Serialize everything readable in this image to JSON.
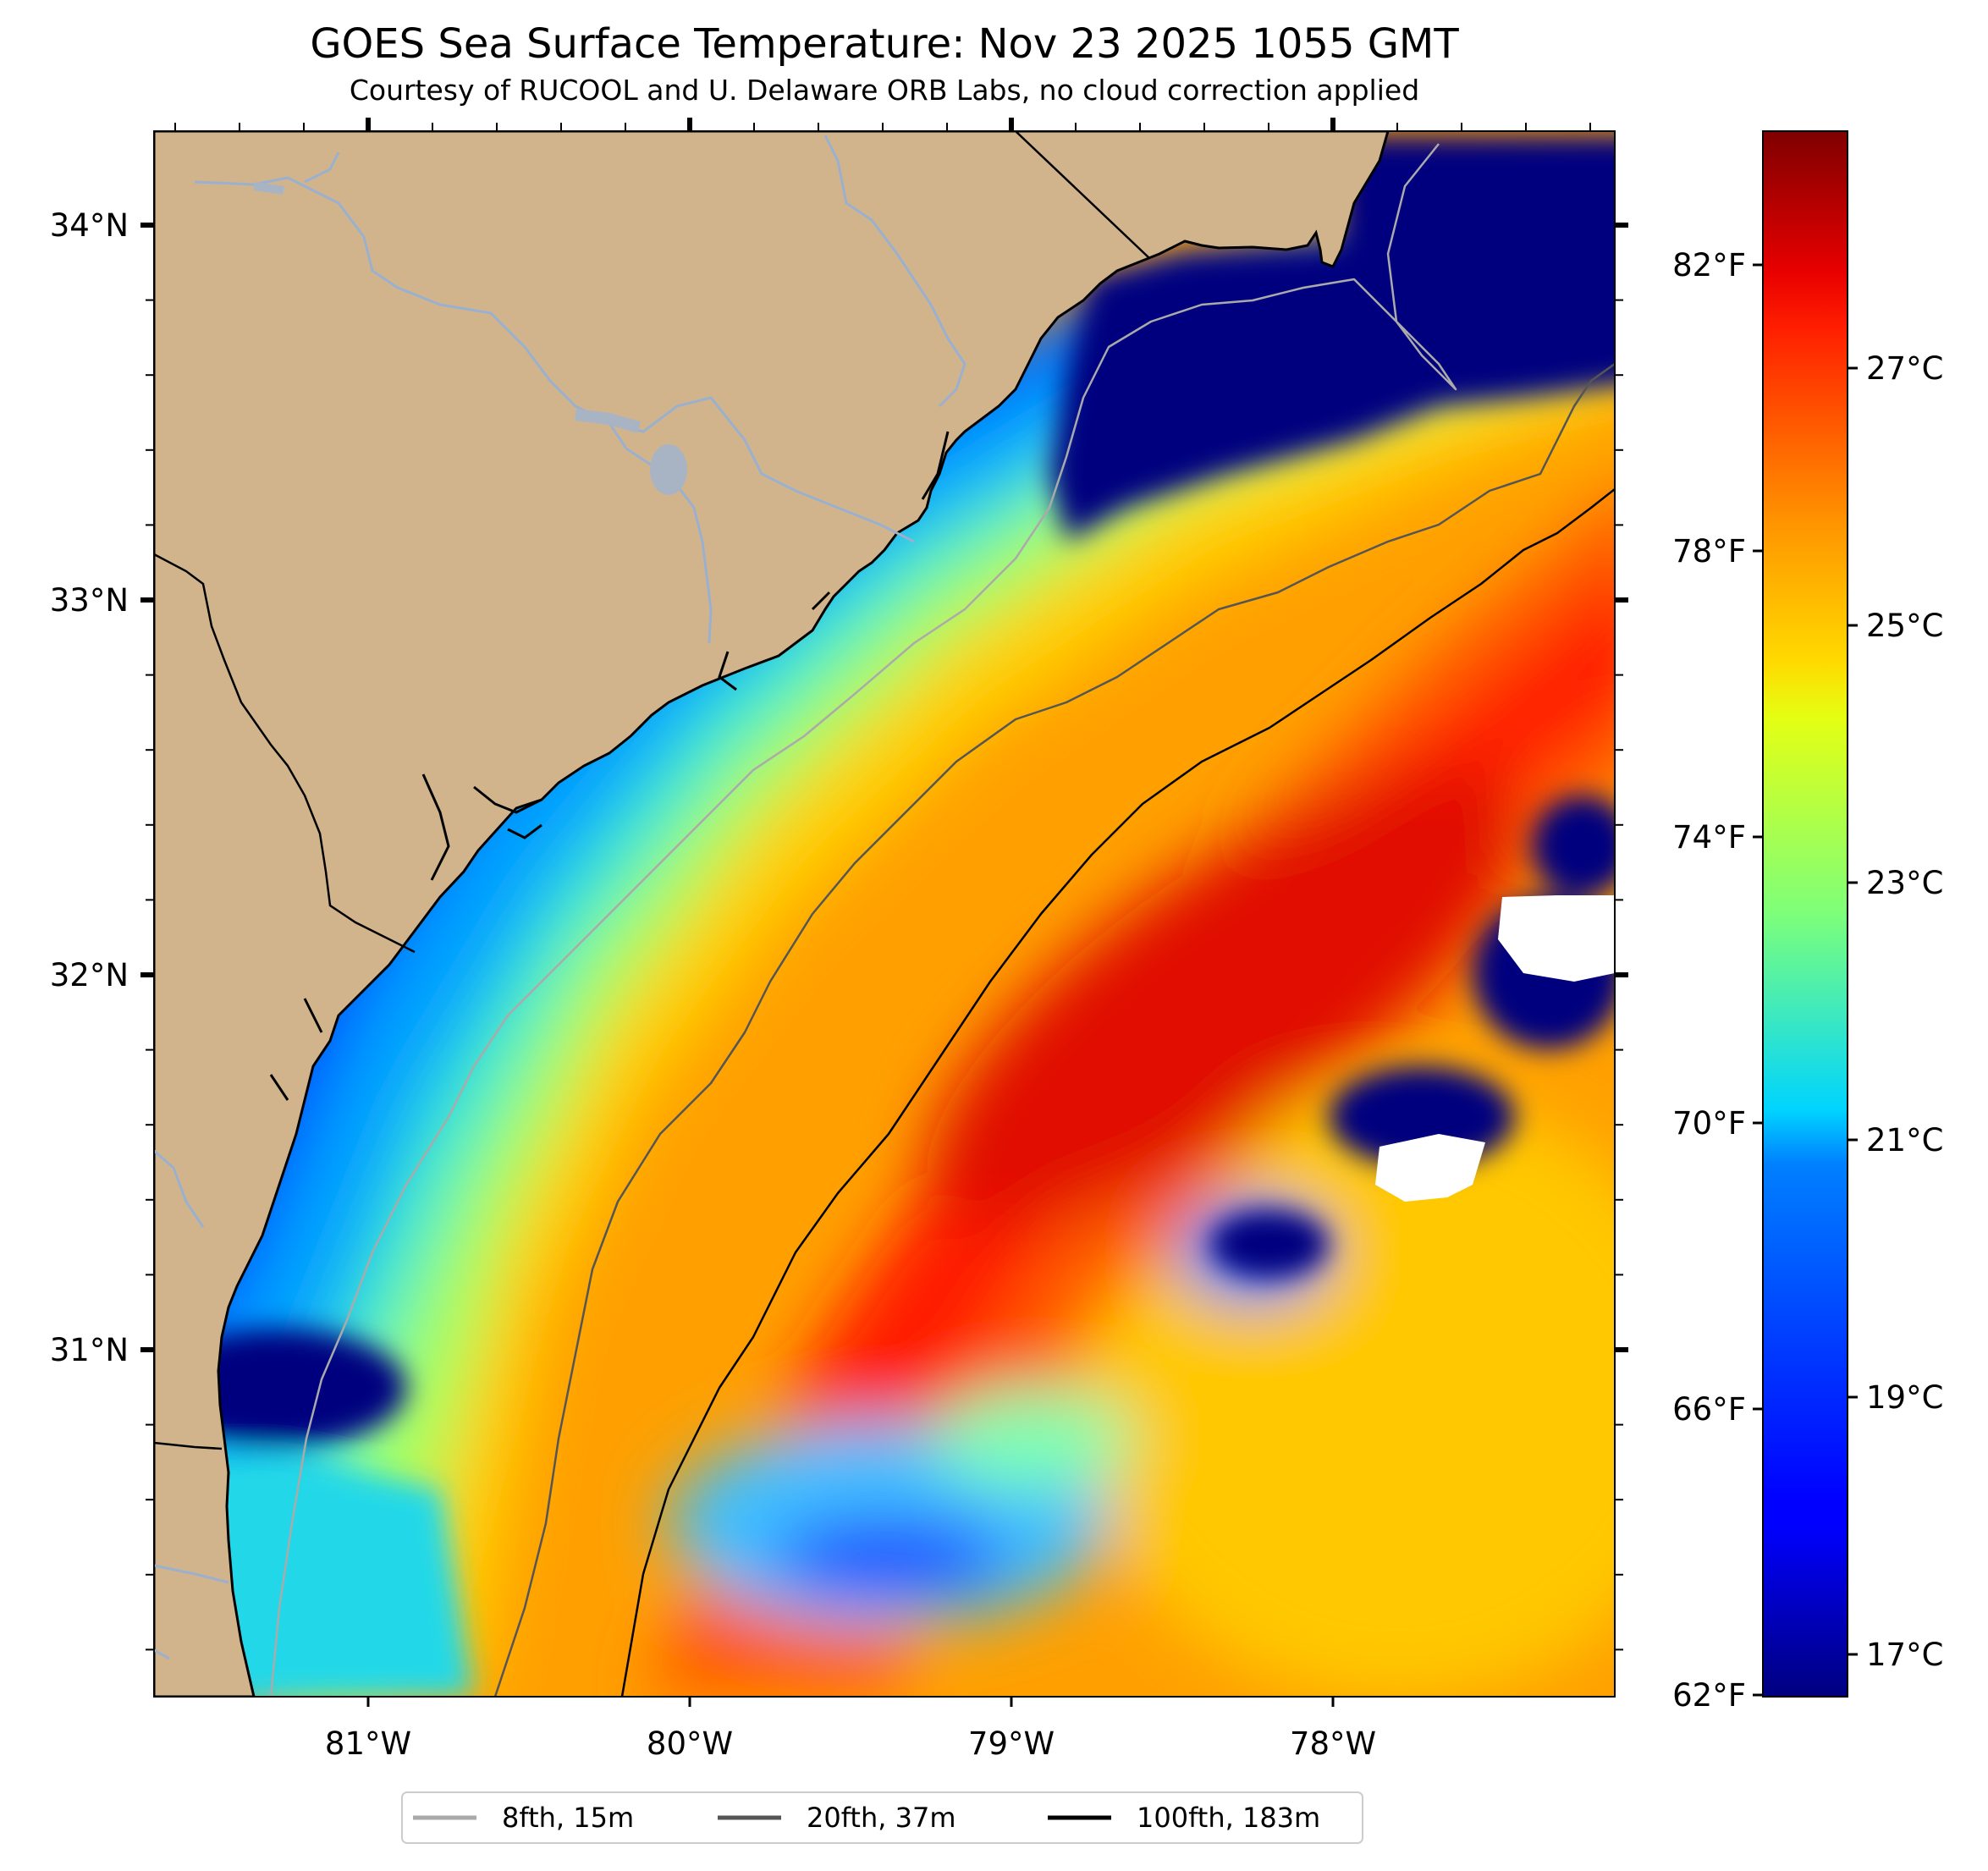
{
  "title": "GOES Sea Surface Temperature: Nov 23 2025 1055 GMT",
  "subtitle": "Courtesy of RUCOOL and U. Delaware ORB Labs, no cloud correction applied",
  "map": {
    "lat_labels": [
      {
        "value": 34,
        "label": "34°N"
      },
      {
        "value": 33,
        "label": "33°N"
      },
      {
        "value": 32,
        "label": "32°N"
      },
      {
        "value": 31,
        "label": "31°N"
      }
    ],
    "lon_labels": [
      {
        "value": -81,
        "label": "81°W"
      },
      {
        "value": -80,
        "label": "80°W"
      },
      {
        "value": -79,
        "label": "79°W"
      },
      {
        "value": -78,
        "label": "78°W"
      }
    ],
    "colors": {
      "land": "#d2b48c",
      "rivers": "#9ab0cf",
      "coastline": "#000000",
      "cloud_mask": "#ffffff"
    }
  },
  "colorbar": {
    "colormap": "jet",
    "fahrenheit_ticks": [
      {
        "value": 62,
        "label": "62°F"
      },
      {
        "value": 66,
        "label": "66°F"
      },
      {
        "value": 70,
        "label": "70°F"
      },
      {
        "value": 74,
        "label": "74°F"
      },
      {
        "value": 78,
        "label": "78°F"
      },
      {
        "value": 82,
        "label": "82°F"
      }
    ],
    "celsius_ticks": [
      {
        "value": 17,
        "label": "17°C"
      },
      {
        "value": 19,
        "label": "19°C"
      },
      {
        "value": 21,
        "label": "21°C"
      },
      {
        "value": 23,
        "label": "23°C"
      },
      {
        "value": 25,
        "label": "25°C"
      },
      {
        "value": 27,
        "label": "27°C"
      }
    ]
  },
  "legend": [
    {
      "label": "8fth, 15m",
      "color": "#aaaaaa"
    },
    {
      "label": "20fth, 37m",
      "color": "#555555"
    },
    {
      "label": "100fth, 183m",
      "color": "#000000"
    }
  ]
}
